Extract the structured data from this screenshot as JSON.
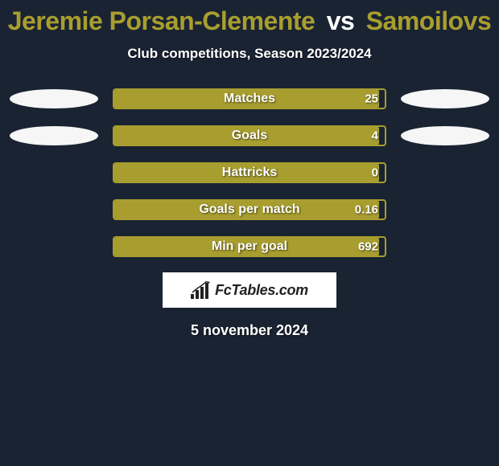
{
  "title": {
    "player1": "Jeremie Porsan-Clemente",
    "vs": "vs",
    "player2": "Samoilovs",
    "player1_color": "#a89e2f",
    "player2_color": "#a89e2f"
  },
  "subtitle": "Club competitions, Season 2023/2024",
  "stats": [
    {
      "label": "Matches",
      "value": "25",
      "fill_pct": 98,
      "show_ellipses": true
    },
    {
      "label": "Goals",
      "value": "4",
      "fill_pct": 98,
      "show_ellipses": true
    },
    {
      "label": "Hattricks",
      "value": "0",
      "fill_pct": 98,
      "show_ellipses": false
    },
    {
      "label": "Goals per match",
      "value": "0.16",
      "fill_pct": 98,
      "show_ellipses": false
    },
    {
      "label": "Min per goal",
      "value": "692",
      "fill_pct": 98,
      "show_ellipses": false
    }
  ],
  "bar_style": {
    "border_color": "#a89e2f",
    "fill_color": "#a89e2f"
  },
  "ellipse_color": "#f5f6f5",
  "logo_text": "FcTables.com",
  "date": "5 november 2024",
  "background_color": "#1a2332"
}
